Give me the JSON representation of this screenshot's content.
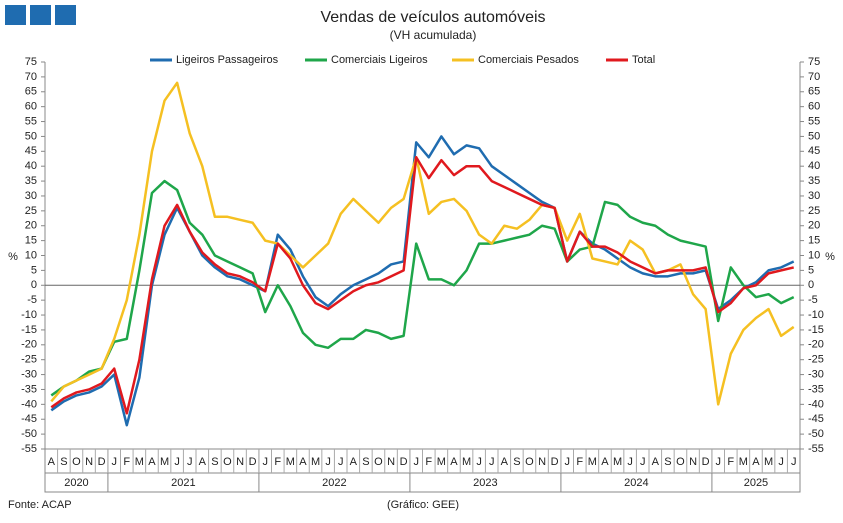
{
  "chart_data": {
    "type": "line",
    "title": "Vendas de veículos automóveis",
    "subtitle": "(VH acumulada)",
    "y_label": "%",
    "source": "Fonte: ACAP",
    "credit": "(Gráfico: GEE)",
    "categories": [
      "A",
      "S",
      "O",
      "N",
      "D",
      "J",
      "F",
      "M",
      "A",
      "M",
      "J",
      "J",
      "A",
      "S",
      "O",
      "N",
      "D",
      "J",
      "F",
      "M",
      "A",
      "M",
      "J",
      "J",
      "A",
      "S",
      "O",
      "N",
      "D",
      "J",
      "F",
      "M",
      "A",
      "M",
      "J",
      "J",
      "A",
      "S",
      "O",
      "N",
      "D",
      "J",
      "F",
      "M",
      "A",
      "M",
      "J",
      "J",
      "A",
      "S",
      "O",
      "N",
      "D",
      "J",
      "F",
      "M",
      "A",
      "M",
      "J",
      "J"
    ],
    "years": [
      "2020",
      "2021",
      "2022",
      "2023",
      "2024",
      "2025"
    ],
    "ylim": [
      -55,
      75
    ],
    "yticks": [
      -55,
      -50,
      -45,
      -40,
      -35,
      -30,
      -25,
      -20,
      -15,
      -10,
      -5,
      0,
      5,
      10,
      15,
      20,
      25,
      30,
      35,
      40,
      45,
      50,
      55,
      60,
      65,
      70,
      75
    ],
    "series": [
      {
        "name": "Ligeiros Passageiros",
        "color": "#1f6cb0",
        "values": [
          -42,
          -39,
          -37,
          -36,
          -34,
          -30,
          -47,
          -31,
          0,
          17,
          26,
          18,
          10,
          6,
          3,
          2,
          0,
          -2,
          17,
          12,
          3,
          -4,
          -7,
          -3,
          0,
          2,
          4,
          7,
          8,
          48,
          43,
          50,
          44,
          47,
          46,
          40,
          37,
          34,
          31,
          28,
          26,
          8,
          18,
          14,
          12,
          9,
          6,
          4,
          3,
          3,
          4,
          4,
          5,
          -8,
          -5,
          -1,
          1,
          5,
          6,
          8
        ]
      },
      {
        "name": "Comerciais Ligeiros",
        "color": "#1fa64a",
        "values": [
          -37,
          -34,
          -32,
          -29,
          -28,
          -19,
          -18,
          5,
          31,
          35,
          32,
          21,
          17,
          10,
          8,
          6,
          4,
          -9,
          0,
          -7,
          -16,
          -20,
          -21,
          -18,
          -18,
          -15,
          -16,
          -18,
          -17,
          14,
          2,
          2,
          0,
          5,
          14,
          14,
          15,
          16,
          17,
          20,
          19,
          8,
          12,
          13,
          28,
          27,
          23,
          21,
          20,
          17,
          15,
          14,
          13,
          -12,
          6,
          0,
          -4,
          -3,
          -6,
          -4
        ]
      },
      {
        "name": "Comerciais Pesados",
        "color": "#f5c022",
        "values": [
          -39,
          -34,
          -32,
          -30,
          -28,
          -18,
          -5,
          17,
          45,
          62,
          68,
          51,
          40,
          23,
          23,
          22,
          21,
          15,
          14,
          10,
          6,
          10,
          14,
          24,
          29,
          25,
          21,
          26,
          29,
          43,
          24,
          28,
          29,
          25,
          17,
          14,
          20,
          19,
          22,
          27,
          26,
          15,
          24,
          9,
          8,
          7,
          15,
          12,
          4,
          5,
          7,
          -3,
          -8,
          -40,
          -23,
          -15,
          -11,
          -8,
          -17,
          -14
        ]
      },
      {
        "name": "Total",
        "color": "#e0191e",
        "values": [
          -41,
          -38,
          -36,
          -35,
          -33,
          -28,
          -43,
          -25,
          2,
          20,
          27,
          18,
          11,
          7,
          4,
          3,
          1,
          -2,
          14,
          9,
          0,
          -6,
          -8,
          -5,
          -2,
          0,
          1,
          3,
          5,
          43,
          36,
          42,
          37,
          40,
          40,
          35,
          33,
          31,
          29,
          27,
          26,
          8,
          18,
          13,
          13,
          11,
          8,
          6,
          4,
          5,
          5,
          5,
          6,
          -9,
          -6,
          -1,
          0,
          4,
          5,
          6
        ]
      }
    ]
  }
}
